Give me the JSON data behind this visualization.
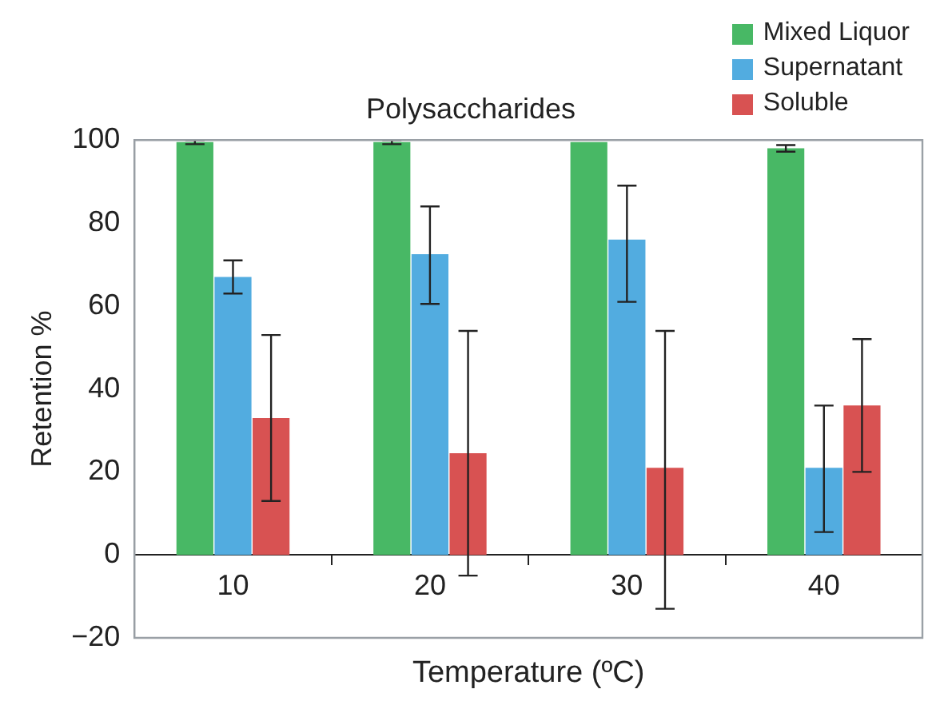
{
  "chart_data": {
    "type": "bar",
    "title": "Polysaccharides",
    "xlabel": "Temperature (ºC)",
    "ylabel": "Retention %",
    "categories": [
      "10",
      "20",
      "30",
      "40"
    ],
    "series": [
      {
        "name": "Mixed Liquor",
        "color": "#48b865",
        "values": [
          99.5,
          99.5,
          99.5,
          98
        ],
        "errors": [
          0.5,
          0.5,
          null,
          0.8
        ]
      },
      {
        "name": "Supernatant",
        "color": "#52ace0",
        "values": [
          67,
          72.5,
          76,
          21
        ],
        "errors": [
          4,
          [
            60.5,
            84
          ],
          [
            61,
            89
          ],
          [
            5.5,
            36
          ]
        ]
      },
      {
        "name": "Soluble",
        "color": "#d85252",
        "values": [
          33,
          24.5,
          21,
          36
        ],
        "errors": [
          [
            13,
            53
          ],
          [
            -5,
            54
          ],
          [
            -13,
            54
          ],
          [
            20,
            52
          ]
        ]
      }
    ],
    "ylim": [
      -20,
      100
    ],
    "yticks": [
      -20,
      0,
      20,
      40,
      60,
      80,
      100
    ],
    "grid": false,
    "legend": "top right"
  }
}
